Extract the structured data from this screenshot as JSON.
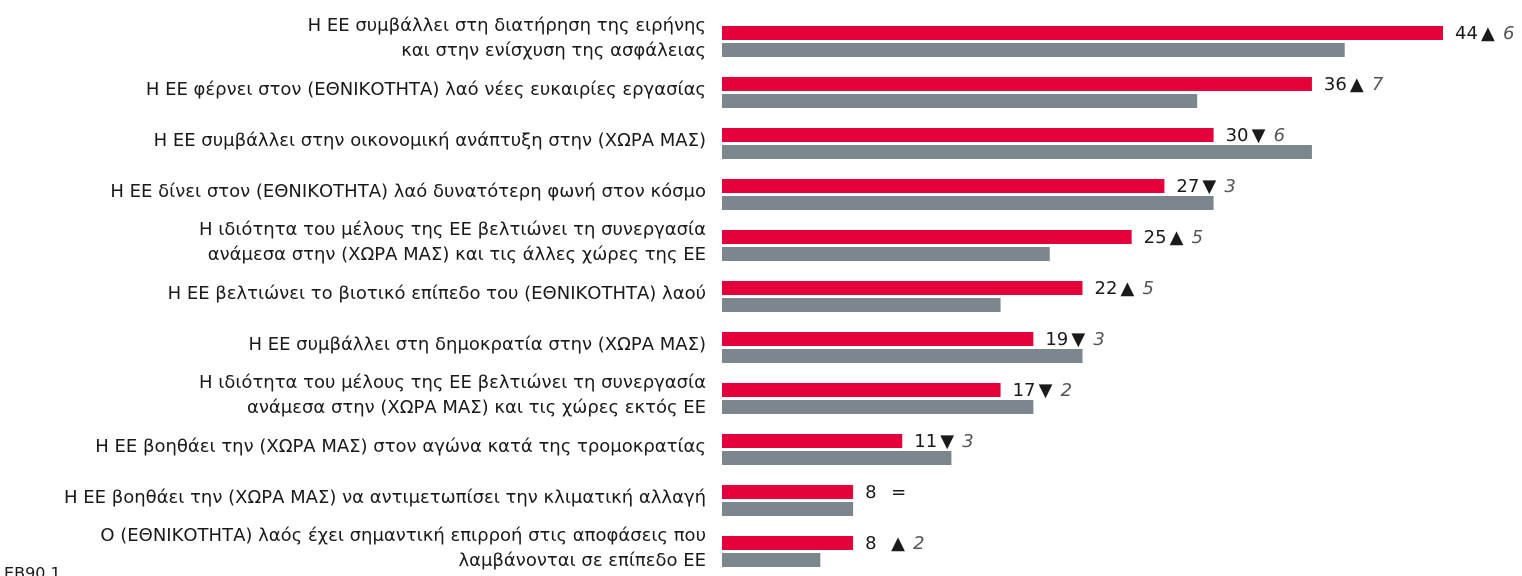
{
  "chart_data": {
    "type": "bar",
    "orientation": "horizontal",
    "categories": [
      [
        "Η ΕΕ συμβάλλει στη διατήρηση της ειρήνης",
        "και στην ενίσχυση της ασφάλειας"
      ],
      [
        "Η ΕΕ φέρνει στον (ΕΘΝΙΚΟΤΗΤΑ) λαό νέες ευκαιρίες εργασίας"
      ],
      [
        "Η ΕΕ συμβάλλει στην οικονομική ανάπτυξη στην (ΧΩΡΑ ΜΑΣ)"
      ],
      [
        "Η ΕΕ δίνει στον (ΕΘΝΙΚΟΤΗΤΑ) λαό δυνατότερη φωνή στον κόσμο"
      ],
      [
        "Η ιδιότητα του μέλους της ΕΕ βελτιώνει τη συνεργασία",
        "ανάμεσα στην (ΧΩΡΑ ΜΑΣ) και τις άλλες χώρες της ΕΕ"
      ],
      [
        "Η ΕΕ βελτιώνει το βιοτικό επίπεδο του (ΕΘΝΙΚΟΤΗΤΑ) λαού"
      ],
      [
        "Η ΕΕ συμβάλλει στη δημοκρατία στην (ΧΩΡΑ ΜΑΣ)"
      ],
      [
        "Η ιδιότητα του μέλους της ΕΕ βελτιώνει τη συνεργασία",
        "ανάμεσα στην (ΧΩΡΑ ΜΑΣ) και τις χώρες εκτός ΕΕ"
      ],
      [
        "Η ΕΕ βοηθάει την (ΧΩΡΑ ΜΑΣ) στον αγώνα κατά της τρομοκρατίας"
      ],
      [
        "Η ΕΕ βοηθάει την (ΧΩΡΑ ΜΑΣ) να αντιμετωπίσει την κλιματική αλλαγή"
      ],
      [
        "Ο (ΕΘΝΙΚΟΤΗΤΑ) λαός έχει σημαντική επιρροή στις αποφάσεις που",
        "λαμβάνονται σε επίπεδο ΕΕ"
      ]
    ],
    "series": [
      {
        "color": "#e4003a",
        "values": [
          44,
          36,
          30,
          27,
          25,
          22,
          19,
          17,
          11,
          8,
          8
        ]
      },
      {
        "color": "#7b868d",
        "values": [
          38,
          29,
          36,
          30,
          20,
          17,
          22,
          19,
          14,
          8,
          6
        ]
      }
    ],
    "change_symbols": [
      "▲",
      "▲",
      "▼",
      "▼",
      "▲",
      "▲",
      "▼",
      "▼",
      "▼",
      "=",
      "▲"
    ],
    "changes": [
      6,
      7,
      6,
      3,
      5,
      5,
      3,
      2,
      3,
      null,
      2
    ],
    "xlim": [
      0,
      44
    ],
    "source": "EB90.1"
  }
}
